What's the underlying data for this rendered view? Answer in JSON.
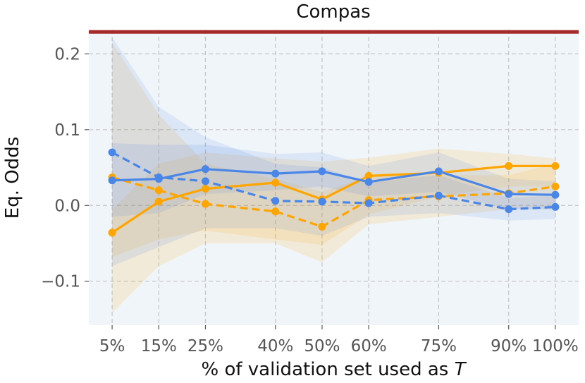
{
  "chart_data": {
    "type": "line",
    "title": "Compas",
    "xlabel_prefix": "% of validation set used as ",
    "xlabel_var": "T",
    "ylabel": "Eq. Odds",
    "x": [
      5,
      15,
      25,
      40,
      50,
      60,
      75,
      90,
      100
    ],
    "x_tick_labels": [
      "5%",
      "15%",
      "25%",
      "40%",
      "50%",
      "60%",
      "75%",
      "90%",
      "100%"
    ],
    "y_ticks": [
      0.2,
      0.1,
      0.0,
      -0.1
    ],
    "y_tick_labels": [
      "0.2",
      "0.1",
      "0.0",
      "−0.1"
    ],
    "xlim": [
      0,
      105
    ],
    "ylim": [
      -0.158,
      0.232
    ],
    "grid": true,
    "reference_line": {
      "value": 0.229,
      "color": "#a52a2a"
    },
    "series": [
      {
        "color": "#ffa500",
        "style": "solid",
        "values": [
          -0.036,
          0.005,
          0.022,
          0.03,
          0.008,
          0.039,
          0.043,
          0.052,
          0.052
        ],
        "lower": [
          -0.068,
          -0.045,
          -0.033,
          -0.045,
          -0.052,
          -0.012,
          0.012,
          0.025,
          0.025
        ],
        "upper": [
          -0.005,
          0.055,
          0.07,
          0.062,
          0.058,
          0.063,
          0.075,
          0.068,
          0.062
        ]
      },
      {
        "color": "#ffa500",
        "style": "dashed",
        "values": [
          0.037,
          0.02,
          0.002,
          -0.008,
          -0.028,
          0.007,
          0.012,
          0.016,
          0.025
        ],
        "lower": [
          -0.142,
          -0.08,
          -0.05,
          -0.05,
          -0.075,
          -0.025,
          -0.015,
          -0.005,
          -0.005
        ],
        "upper": [
          0.215,
          0.12,
          0.055,
          0.035,
          0.018,
          0.038,
          0.04,
          0.04,
          0.055
        ]
      },
      {
        "color": "#4a86e8",
        "style": "solid",
        "values": [
          0.033,
          0.035,
          0.048,
          0.042,
          0.045,
          0.031,
          0.045,
          0.015,
          0.014
        ],
        "lower": [
          -0.015,
          -0.01,
          0.015,
          0.02,
          0.025,
          0.012,
          0.018,
          -0.005,
          -0.005
        ],
        "upper": [
          0.082,
          0.08,
          0.08,
          0.068,
          0.07,
          0.052,
          0.07,
          0.035,
          0.032
        ]
      },
      {
        "color": "#4a86e8",
        "style": "dashed",
        "values": [
          0.07,
          0.037,
          0.032,
          0.006,
          0.005,
          0.003,
          0.013,
          -0.005,
          -0.002
        ],
        "lower": [
          -0.08,
          -0.055,
          -0.03,
          -0.03,
          -0.04,
          -0.015,
          -0.01,
          -0.02,
          -0.018
        ],
        "upper": [
          0.222,
          0.13,
          0.09,
          0.055,
          0.05,
          0.03,
          0.04,
          0.01,
          0.013
        ]
      }
    ]
  }
}
